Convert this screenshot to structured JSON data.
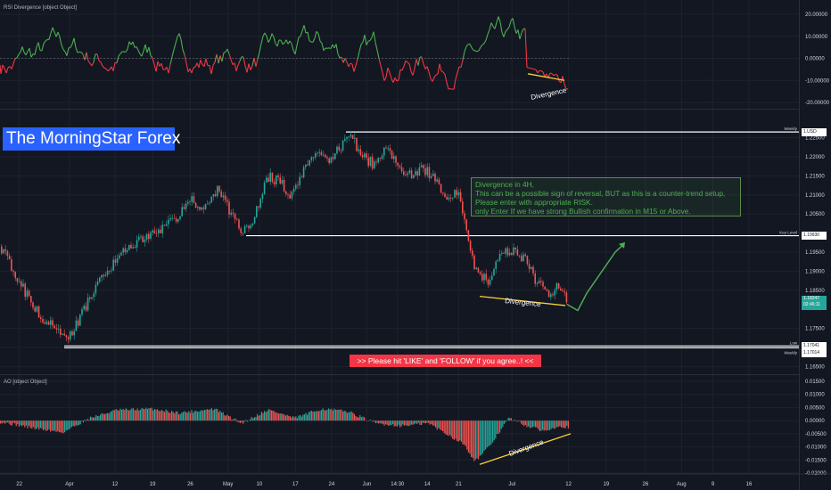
{
  "chart_data": [
    {
      "type": "line",
      "title": "RSI Divergence [object Object]",
      "y_ticks": [
        "20.00000",
        "10.00000",
        "0.00000",
        "-10.00000",
        "-20.00000"
      ],
      "ylim": [
        -20,
        20
      ],
      "zero_line": true,
      "colors": {
        "positive": "#4caf50",
        "negative": "#f23645",
        "divergence": "#f7d038"
      },
      "divergence_label": "Divergence",
      "divergence_line": {
        "from": [
          "Jun 30",
          -7
        ],
        "to": [
          "Jul 6",
          -10
        ]
      }
    },
    {
      "type": "candlestick",
      "y_ticks": [
        "1.22500",
        "1.22000",
        "1.21500",
        "1.21000",
        "1.20500",
        "1.19500",
        "1.19000",
        "1.18500",
        "1.17500",
        "1.17000",
        "1.16500"
      ],
      "ylim": [
        1.163,
        1.2305
      ],
      "colors": {
        "up": "#26a69a",
        "down": "#ef5350"
      },
      "levels": [
        {
          "name": "Weekly",
          "value": 1.2265,
          "tag": "1.USD"
        },
        {
          "name": "Key Level",
          "value": 1.1993,
          "tag": "1.19930"
        },
        {
          "name": "Low",
          "value": 1.1704,
          "tag": "1.17041"
        },
        {
          "name": "Weekly",
          "value": 1.17014,
          "tag": "1.17014"
        }
      ],
      "last_price": {
        "value": "1.18247",
        "countdown": "02:46:11"
      },
      "divergence_label": "Divergence",
      "divergence_line": {
        "from": [
          "Jun 21",
          1.1834
        ],
        "to": [
          "Jul 6",
          1.181
        ]
      },
      "projection": [
        [
          1.18,
          1.1813
        ],
        [
          1.1828,
          1.1848
        ],
        [
          1.1848,
          1.194
        ],
        [
          1.1976,
          1.1976
        ]
      ],
      "annotations": {
        "brand": "The MorningStar Forex",
        "note_lines": [
          "Divergence in 4H,",
          "This can be a possible sign of reversal, BUT as this is a counter-trend setup,",
          "Please enter with appropriate RISK.",
          "only Enter If we have strong Bullish confirmation in M15 or Above."
        ],
        "cta": ">>     Please hit 'LIKE' and 'FOLLOW' if you agree..!     <<"
      }
    },
    {
      "type": "bar",
      "title": "AO [object Object]",
      "y_ticks": [
        "0.01500",
        "0.01000",
        "0.00500",
        "0.00000",
        "-0.00500",
        "-0.01000",
        "-0.01500",
        "-0.02000"
      ],
      "ylim": [
        -0.02,
        0.015
      ],
      "colors": {
        "up": "#26a69a",
        "down": "#ef5350"
      },
      "divergence_label": "Divergence",
      "divergence_line": {
        "from": [
          "Jun 21",
          -0.0167
        ],
        "to": [
          "Jul 6",
          -0.005
        ]
      }
    }
  ],
  "x_axis": {
    "ticks": [
      "22",
      "Apr",
      "12",
      "19",
      "26",
      "May",
      "10",
      "17",
      "24",
      "Jun",
      "14:30",
      "14",
      "21",
      "Jul",
      "12",
      "19",
      "26",
      "Aug",
      "9",
      "16"
    ]
  }
}
